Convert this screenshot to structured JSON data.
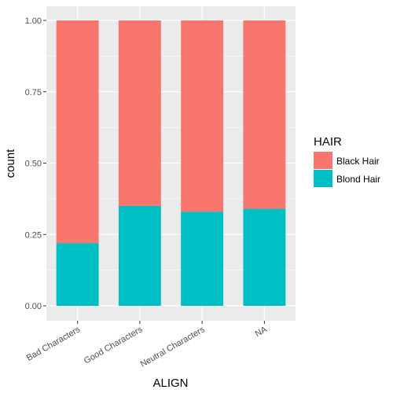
{
  "chart_data": {
    "type": "bar",
    "stacked": "fill",
    "categories": [
      "Bad Characters",
      "Good Characters",
      "Neutral Characters",
      "NA"
    ],
    "series": [
      {
        "name": "Black Hair",
        "values": [
          0.78,
          0.65,
          0.67,
          0.66
        ]
      },
      {
        "name": "Blond Hair",
        "values": [
          0.22,
          0.35,
          0.33,
          0.34
        ]
      }
    ],
    "xlabel": "ALIGN",
    "ylabel": "count",
    "ylim": [
      0,
      1
    ],
    "yticks": [
      0.0,
      0.25,
      0.5,
      0.75,
      1.0
    ],
    "ytick_labels": [
      "0.00",
      "0.25",
      "0.50",
      "0.75",
      "1.00"
    ],
    "grid": true,
    "legend": {
      "title": "HAIR",
      "position": "right"
    },
    "colors": {
      "Black Hair": "#F8766D",
      "Blond Hair": "#00BFC4",
      "panel": "#EBEBEB",
      "grid": "#FFFFFF"
    }
  }
}
